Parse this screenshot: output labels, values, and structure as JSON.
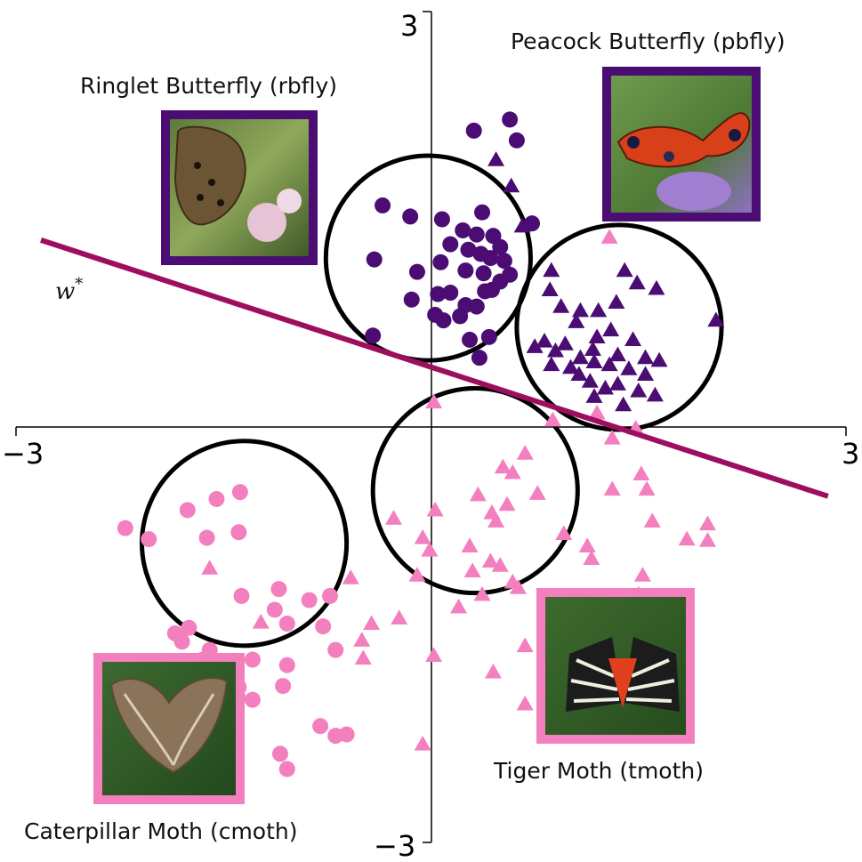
{
  "chart_data": {
    "type": "scatter",
    "xlim": [
      -3,
      3
    ],
    "ylim": [
      -3,
      3
    ],
    "ticks": {
      "x_min_label": "−3",
      "x_max_label": "3",
      "y_min_label": "−3",
      "y_max_label": "3"
    },
    "grid": false,
    "colors": {
      "butterfly": "#4b0d74",
      "moth": "#f47fbe",
      "line": "#9e0e5e",
      "circle": "#000000"
    },
    "line": {
      "label": "w*",
      "points": [
        [
          -2.82,
          1.35
        ],
        [
          2.87,
          -0.5
        ]
      ]
    },
    "circles": [
      {
        "class": "rbfly",
        "center": [
          -0.02,
          1.22
        ],
        "radius": 0.74
      },
      {
        "class": "pbfly",
        "center": [
          1.36,
          0.72
        ],
        "radius": 0.74
      },
      {
        "class": "tmoth",
        "center": [
          0.32,
          -0.46
        ],
        "radius": 0.74
      },
      {
        "class": "cmoth",
        "center": [
          -1.35,
          -0.84
        ],
        "radius": 0.74
      }
    ],
    "series": [
      {
        "name": "Ringlet Butterfly (rbfly)",
        "marker": "circle",
        "color": "#4b0d74",
        "points": [
          [
            0.57,
            2.22
          ],
          [
            0.31,
            2.14
          ],
          [
            0.62,
            2.07
          ],
          [
            -0.35,
            1.6
          ],
          [
            -0.15,
            1.52
          ],
          [
            0.08,
            1.5
          ],
          [
            0.37,
            1.55
          ],
          [
            0.73,
            1.47
          ],
          [
            0.23,
            1.42
          ],
          [
            0.33,
            1.39
          ],
          [
            0.45,
            1.38
          ],
          [
            0.14,
            1.32
          ],
          [
            0.27,
            1.28
          ],
          [
            0.36,
            1.25
          ],
          [
            0.43,
            1.22
          ],
          [
            0.5,
            1.3
          ],
          [
            0.53,
            1.2
          ],
          [
            0.25,
            1.13
          ],
          [
            0.38,
            1.11
          ],
          [
            -0.41,
            1.21
          ],
          [
            0.07,
            1.19
          ],
          [
            0.5,
            1.05
          ],
          [
            0.57,
            1.1
          ],
          [
            -0.1,
            1.12
          ],
          [
            0.39,
            0.98
          ],
          [
            0.44,
            0.99
          ],
          [
            0.14,
            0.97
          ],
          [
            0.05,
            0.96
          ],
          [
            -0.14,
            0.92
          ],
          [
            0.25,
            0.88
          ],
          [
            0.33,
            0.87
          ],
          [
            0.03,
            0.81
          ],
          [
            0.21,
            0.8
          ],
          [
            0.09,
            0.77
          ],
          [
            0.42,
            0.65
          ],
          [
            0.28,
            0.63
          ],
          [
            -0.42,
            0.66
          ],
          [
            0.35,
            0.5
          ]
        ]
      },
      {
        "name": "Peacock Butterfly (pbfly)",
        "marker": "triangle",
        "color": "#4b0d74",
        "points": [
          [
            0.47,
            1.93
          ],
          [
            0.58,
            1.74
          ],
          [
            0.66,
            1.45
          ],
          [
            0.87,
            1.13
          ],
          [
            1.4,
            1.13
          ],
          [
            1.49,
            1.04
          ],
          [
            1.63,
            1.0
          ],
          [
            2.06,
            0.77
          ],
          [
            0.86,
            0.99
          ],
          [
            0.94,
            0.87
          ],
          [
            1.08,
            0.84
          ],
          [
            1.21,
            0.84
          ],
          [
            1.34,
            0.9
          ],
          [
            1.05,
            0.76
          ],
          [
            1.3,
            0.7
          ],
          [
            1.2,
            0.65
          ],
          [
            1.46,
            0.63
          ],
          [
            0.82,
            0.62
          ],
          [
            0.97,
            0.6
          ],
          [
            1.17,
            0.56
          ],
          [
            1.35,
            0.52
          ],
          [
            1.55,
            0.5
          ],
          [
            1.65,
            0.48
          ],
          [
            0.75,
            0.58
          ],
          [
            0.9,
            0.55
          ],
          [
            1.08,
            0.5
          ],
          [
            1.18,
            0.47
          ],
          [
            1.29,
            0.45
          ],
          [
            1.43,
            0.42
          ],
          [
            1.07,
            0.38
          ],
          [
            1.15,
            0.33
          ],
          [
            1.35,
            0.31
          ],
          [
            1.26,
            0.28
          ],
          [
            1.5,
            0.26
          ],
          [
            1.18,
            0.22
          ],
          [
            1.39,
            0.16
          ],
          [
            1.62,
            0.23
          ],
          [
            1.01,
            0.43
          ],
          [
            0.87,
            0.45
          ],
          [
            1.55,
            0.38
          ]
        ]
      },
      {
        "name": "Tiger Moth (tmoth)",
        "marker": "triangle",
        "color": "#f47fbe",
        "points": [
          [
            1.29,
            1.37
          ],
          [
            0.02,
            0.18
          ],
          [
            1.2,
            0.1
          ],
          [
            0.88,
            0.05
          ],
          [
            1.48,
            -0.01
          ],
          [
            1.31,
            -0.08
          ],
          [
            0.68,
            -0.19
          ],
          [
            0.52,
            -0.29
          ],
          [
            0.59,
            -0.33
          ],
          [
            1.52,
            -0.34
          ],
          [
            1.31,
            -0.45
          ],
          [
            0.77,
            -0.48
          ],
          [
            1.56,
            -0.45
          ],
          [
            0.34,
            -0.49
          ],
          [
            0.55,
            -0.56
          ],
          [
            0.03,
            -0.6
          ],
          [
            0.44,
            -0.62
          ],
          [
            -0.27,
            -0.66
          ],
          [
            0.47,
            -0.68
          ],
          [
            1.6,
            -0.68
          ],
          [
            0.96,
            -0.77
          ],
          [
            -0.06,
            -0.8
          ],
          [
            2.0,
            -0.7
          ],
          [
            2.0,
            -0.82
          ],
          [
            1.85,
            -0.81
          ],
          [
            0.28,
            -0.86
          ],
          [
            -0.01,
            -0.89
          ],
          [
            1.13,
            -0.86
          ],
          [
            1.16,
            -0.95
          ],
          [
            0.43,
            -0.97
          ],
          [
            1.53,
            -1.07
          ],
          [
            0.5,
            -1.0
          ],
          [
            -1.6,
            -1.02
          ],
          [
            0.3,
            -1.04
          ],
          [
            -0.58,
            -1.09
          ],
          [
            -0.1,
            -1.07
          ],
          [
            0.59,
            -1.12
          ],
          [
            1.5,
            -1.21
          ],
          [
            0.37,
            -1.21
          ],
          [
            0.63,
            -1.16
          ],
          [
            0.2,
            -1.3
          ],
          [
            -0.23,
            -1.38
          ],
          [
            -1.23,
            -1.41
          ],
          [
            -0.43,
            -1.42
          ],
          [
            -0.5,
            -1.54
          ],
          [
            -0.49,
            -1.67
          ],
          [
            0.68,
            -1.58
          ],
          [
            0.45,
            -1.77
          ],
          [
            0.68,
            -2.0
          ],
          [
            -0.06,
            -2.29
          ],
          [
            0.02,
            -1.65
          ]
        ]
      },
      {
        "name": "Caterpillar Moth (cmoth)",
        "marker": "circle",
        "color": "#f47fbe",
        "points": [
          [
            -1.38,
            -0.47
          ],
          [
            -1.55,
            -0.52
          ],
          [
            -1.76,
            -0.6
          ],
          [
            -1.39,
            -0.76
          ],
          [
            -1.62,
            -0.8
          ],
          [
            -2.04,
            -0.81
          ],
          [
            -2.21,
            -0.73
          ],
          [
            -0.88,
            -1.25
          ],
          [
            -0.73,
            -1.22
          ],
          [
            -1.1,
            -1.17
          ],
          [
            -1.37,
            -1.22
          ],
          [
            -1.13,
            -1.32
          ],
          [
            -1.04,
            -1.42
          ],
          [
            -0.78,
            -1.44
          ],
          [
            -0.69,
            -1.61
          ],
          [
            -1.29,
            -1.68
          ],
          [
            -1.04,
            -1.72
          ],
          [
            -1.07,
            -1.87
          ],
          [
            -1.75,
            -1.45
          ],
          [
            -1.85,
            -1.49
          ],
          [
            -1.8,
            -1.55
          ],
          [
            -1.6,
            -1.61
          ],
          [
            -1.65,
            -1.68
          ],
          [
            -1.76,
            -1.7
          ],
          [
            -1.66,
            -1.75
          ],
          [
            -1.53,
            -1.8
          ],
          [
            -1.54,
            -1.84
          ],
          [
            -1.39,
            -1.88
          ],
          [
            -1.4,
            -1.94
          ],
          [
            -1.29,
            -1.97
          ],
          [
            -0.8,
            -2.16
          ],
          [
            -0.69,
            -2.23
          ],
          [
            -0.61,
            -2.22
          ],
          [
            -1.09,
            -2.36
          ],
          [
            -1.04,
            -2.47
          ]
        ]
      }
    ],
    "annotations": [
      {
        "text": "Ringlet Butterfly (rbfly)",
        "position": "upper-left",
        "image": "ringlet-butterfly-photo",
        "frame_color": "#4b0d74"
      },
      {
        "text": "Peacock Butterfly (pbfly)",
        "position": "upper-right",
        "image": "peacock-butterfly-photo",
        "frame_color": "#4b0d74"
      },
      {
        "text": "Tiger Moth (tmoth)",
        "position": "lower-right",
        "image": "tiger-moth-photo",
        "frame_color": "#f47fbe"
      },
      {
        "text": "Caterpillar Moth (cmoth)",
        "position": "lower-left",
        "image": "caterpillar-moth-photo",
        "frame_color": "#f47fbe"
      }
    ]
  }
}
